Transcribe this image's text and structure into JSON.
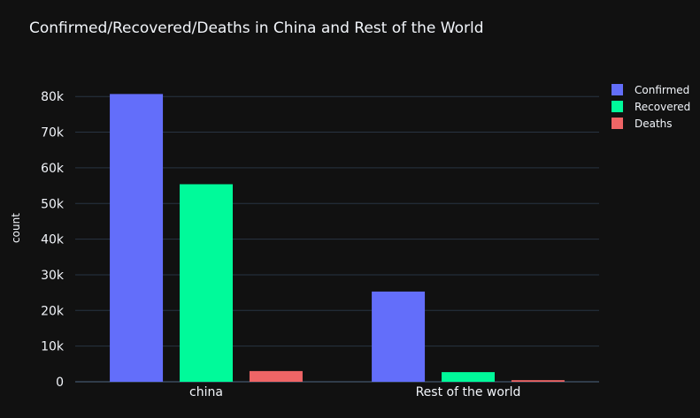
{
  "chart_data": {
    "type": "bar",
    "title": "Confirmed/Recovered/Deaths in China and Rest of the World",
    "xlabel": "",
    "ylabel": "count",
    "categories": [
      "china",
      "Rest of the world"
    ],
    "ylim": [
      0,
      86000
    ],
    "yticks": [
      0,
      10000,
      20000,
      30000,
      40000,
      50000,
      60000,
      70000,
      80000
    ],
    "ytick_labels": [
      "0",
      "10k",
      "20k",
      "30k",
      "40k",
      "50k",
      "60k",
      "70k",
      "80k"
    ],
    "grid": true,
    "legend_position": "top-right",
    "series": [
      {
        "name": "Confirmed",
        "color": "#636efa",
        "values": [
          80700,
          25300
        ]
      },
      {
        "name": "Recovered",
        "color": "#00fa9a",
        "values": [
          55400,
          2700
        ]
      },
      {
        "name": "Deaths",
        "color": "#ef6566",
        "values": [
          3000,
          450
        ]
      }
    ]
  }
}
